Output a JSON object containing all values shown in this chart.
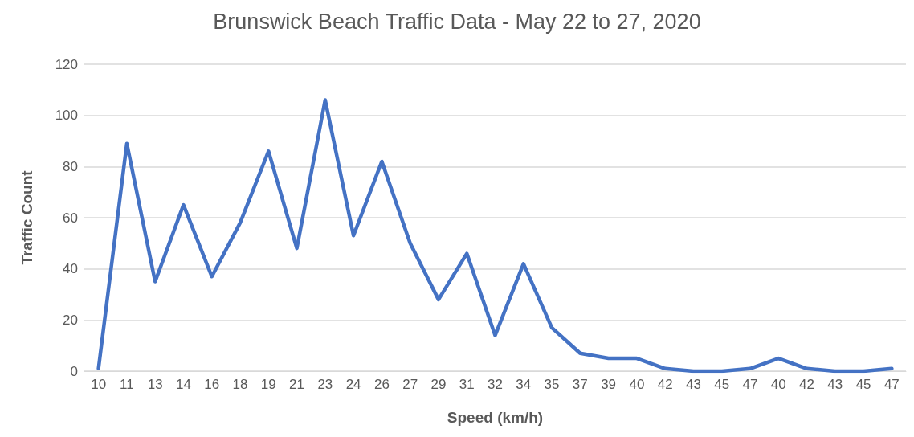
{
  "chart_data": {
    "type": "line",
    "title": "Brunswick Beach Traffic Data - May 22 to 27, 2020",
    "xlabel": "Speed (km/h)",
    "ylabel": "Traffic Count",
    "categories": [
      "10",
      "11",
      "13",
      "14",
      "16",
      "18",
      "19",
      "21",
      "23",
      "24",
      "26",
      "27",
      "29",
      "31",
      "32",
      "34",
      "35",
      "37",
      "39",
      "40",
      "42",
      "43",
      "45",
      "47",
      "40",
      "42",
      "43",
      "45",
      "47"
    ],
    "series": [
      {
        "color": "#4472c4",
        "values": [
          1,
          89,
          35,
          65,
          37,
          58,
          86,
          48,
          106,
          53,
          82,
          50,
          28,
          46,
          14,
          42,
          17,
          7,
          5,
          5,
          1,
          0,
          0,
          1,
          5,
          1,
          0,
          0,
          1
        ]
      }
    ],
    "ylim": [
      0,
      120
    ],
    "yticks": [
      0,
      20,
      40,
      60,
      80,
      100,
      120
    ],
    "grid": "y",
    "marker": "none",
    "line_style": "solid"
  }
}
